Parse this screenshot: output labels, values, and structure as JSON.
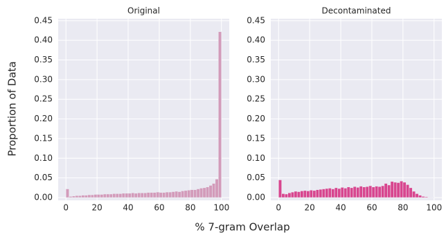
{
  "supxlabel": "% 7-gram Overlap",
  "supylabel": "Proportion of Data",
  "chart_data": [
    {
      "type": "histogram",
      "title": "Original",
      "color": "#d39bba",
      "bins": [
        0,
        2,
        4,
        6,
        8,
        10,
        12,
        14,
        16,
        18,
        20,
        22,
        24,
        26,
        28,
        30,
        32,
        34,
        36,
        38,
        40,
        42,
        44,
        46,
        48,
        50,
        52,
        54,
        56,
        58,
        60,
        62,
        64,
        66,
        68,
        70,
        72,
        74,
        76,
        78,
        80,
        82,
        84,
        86,
        88,
        90,
        92,
        94,
        96,
        98,
        100
      ],
      "values": [
        0.022,
        0.003,
        0.004,
        0.005,
        0.005,
        0.006,
        0.006,
        0.007,
        0.007,
        0.008,
        0.008,
        0.008,
        0.009,
        0.009,
        0.009,
        0.01,
        0.01,
        0.01,
        0.011,
        0.011,
        0.011,
        0.012,
        0.011,
        0.012,
        0.012,
        0.012,
        0.013,
        0.013,
        0.013,
        0.014,
        0.013,
        0.013,
        0.014,
        0.014,
        0.015,
        0.016,
        0.015,
        0.017,
        0.018,
        0.019,
        0.02,
        0.02,
        0.022,
        0.024,
        0.025,
        0.027,
        0.031,
        0.036,
        0.047,
        0.422
      ],
      "xlim": [
        -5,
        105
      ],
      "ylim": [
        0,
        0.455
      ],
      "xticks": [
        0,
        20,
        40,
        60,
        80,
        100
      ],
      "yticks": [
        {
          "value": 0,
          "label": "0.00"
        },
        {
          "value": 0.05,
          "label": "0.05"
        },
        {
          "value": 0.1,
          "label": "0.10"
        },
        {
          "value": 0.15,
          "label": "0.15"
        },
        {
          "value": 0.2,
          "label": "0.20"
        },
        {
          "value": 0.25,
          "label": "0.25"
        },
        {
          "value": 0.3,
          "label": "0.30"
        },
        {
          "value": 0.35,
          "label": "0.35"
        },
        {
          "value": 0.4,
          "label": "0.40"
        },
        {
          "value": 0.45,
          "label": "0.45"
        }
      ],
      "grid": true
    },
    {
      "type": "histogram",
      "title": "Decontaminated",
      "color": "#d8468f",
      "bins": [
        0,
        2,
        4,
        6,
        8,
        10,
        12,
        14,
        16,
        18,
        20,
        22,
        24,
        26,
        28,
        30,
        32,
        34,
        36,
        38,
        40,
        42,
        44,
        46,
        48,
        50,
        52,
        54,
        56,
        58,
        60,
        62,
        64,
        66,
        68,
        70,
        72,
        74,
        76,
        78,
        80,
        82,
        84,
        86,
        88,
        90,
        92,
        94,
        96,
        98,
        100
      ],
      "values": [
        0.045,
        0.01,
        0.009,
        0.012,
        0.014,
        0.016,
        0.015,
        0.017,
        0.018,
        0.017,
        0.019,
        0.018,
        0.02,
        0.021,
        0.022,
        0.023,
        0.024,
        0.022,
        0.025,
        0.023,
        0.026,
        0.024,
        0.027,
        0.025,
        0.028,
        0.026,
        0.029,
        0.027,
        0.028,
        0.03,
        0.027,
        0.029,
        0.028,
        0.03,
        0.036,
        0.032,
        0.041,
        0.039,
        0.038,
        0.042,
        0.039,
        0.033,
        0.025,
        0.016,
        0.01,
        0.006,
        0.003,
        0.002,
        0.001,
        0.0005
      ],
      "xlim": [
        -5,
        105
      ],
      "ylim": [
        0,
        0.455
      ],
      "xticks": [
        0,
        20,
        40,
        60,
        80,
        100
      ],
      "yticks": [
        {
          "value": 0,
          "label": "0.00"
        },
        {
          "value": 0.05,
          "label": "0.05"
        },
        {
          "value": 0.1,
          "label": "0.10"
        },
        {
          "value": 0.15,
          "label": "0.15"
        },
        {
          "value": 0.2,
          "label": "0.20"
        },
        {
          "value": 0.25,
          "label": "0.25"
        },
        {
          "value": 0.3,
          "label": "0.30"
        },
        {
          "value": 0.35,
          "label": "0.35"
        },
        {
          "value": 0.4,
          "label": "0.40"
        },
        {
          "value": 0.45,
          "label": "0.45"
        }
      ],
      "grid": true
    }
  ]
}
